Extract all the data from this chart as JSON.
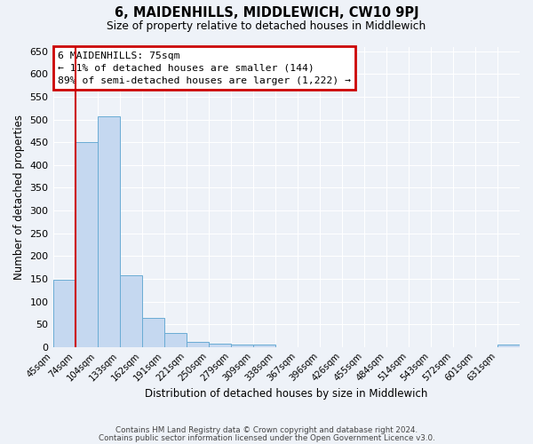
{
  "title": "6, MAIDENHILLS, MIDDLEWICH, CW10 9PJ",
  "subtitle": "Size of property relative to detached houses in Middlewich",
  "xlabel": "Distribution of detached houses by size in Middlewich",
  "ylabel": "Number of detached properties",
  "bar_values": [
    148,
    450,
    507,
    158,
    65,
    31,
    12,
    7,
    6,
    5,
    0,
    0,
    0,
    0,
    0,
    0,
    0,
    0,
    0,
    0,
    5
  ],
  "tick_labels": [
    "45sqm",
    "74sqm",
    "104sqm",
    "133sqm",
    "162sqm",
    "191sqm",
    "221sqm",
    "250sqm",
    "279sqm",
    "309sqm",
    "338sqm",
    "367sqm",
    "396sqm",
    "426sqm",
    "455sqm",
    "484sqm",
    "514sqm",
    "543sqm",
    "572sqm",
    "601sqm",
    "631sqm"
  ],
  "bar_color": "#c5d8f0",
  "bar_edge_color": "#6aacd4",
  "vline_color": "#cc0000",
  "vline_bin": 1,
  "ylim": [
    0,
    660
  ],
  "yticks": [
    0,
    50,
    100,
    150,
    200,
    250,
    300,
    350,
    400,
    450,
    500,
    550,
    600,
    650
  ],
  "annotation_title": "6 MAIDENHILLS: 75sqm",
  "annotation_line1": "← 11% of detached houses are smaller (144)",
  "annotation_line2": "89% of semi-detached houses are larger (1,222) →",
  "annotation_box_color": "#cc0000",
  "footer1": "Contains HM Land Registry data © Crown copyright and database right 2024.",
  "footer2": "Contains public sector information licensed under the Open Government Licence v3.0.",
  "background_color": "#eef2f8",
  "grid_color": "#ffffff"
}
